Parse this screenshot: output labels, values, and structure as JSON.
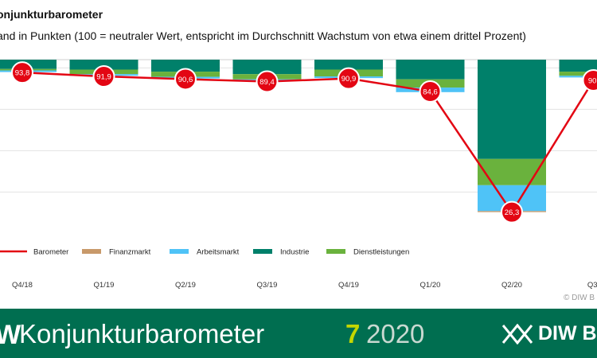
{
  "title": "onjunkturbarometer",
  "subtitle": "and in Punkten (100 = neutraler Wert, entspricht im Durchschnitt Wachstum von etwa einem drittel Prozent)",
  "credit": "© DIW B",
  "footer": {
    "logo_fragment": "W",
    "title": "Konjunkturbarometer",
    "issue_number": "7",
    "issue_year": "2020",
    "brand": "DIW BE"
  },
  "colors": {
    "barometer": "#e30613",
    "finanzmarkt": "#c8996a",
    "arbeitsmarkt": "#4fc3f7",
    "industrie": "#00806a",
    "dienstleistungen": "#6ab23d",
    "footer_bg": "#006e50",
    "issue_accent": "#c4d600"
  },
  "chart_data": {
    "type": "bar",
    "categories": [
      "Q4/18",
      "Q1/19",
      "Q2/19",
      "Q3/19",
      "Q4/19",
      "Q1/20",
      "Q2/20",
      "Q3/"
    ],
    "baseline": 100,
    "ylim": [
      20,
      102
    ],
    "grid": true,
    "legend_position": "bottom",
    "series": [
      {
        "name": "Barometer",
        "type": "line",
        "color": "#e30613",
        "values": [
          93.8,
          91.9,
          90.6,
          89.4,
          90.9,
          84.6,
          26.3,
          90
        ],
        "labels": [
          "93,8",
          "91,9",
          "90,6",
          "89,4",
          "90,9",
          "84,6",
          "26,3",
          "90,"
        ]
      },
      {
        "name": "Finanzmarkt",
        "type": "stacked-bar",
        "color": "#c8996a",
        "values": [
          0,
          0,
          0,
          0,
          0,
          0,
          -0.5,
          0
        ]
      },
      {
        "name": "Arbeitsmarkt",
        "type": "stacked-bar",
        "color": "#4fc3f7",
        "values": [
          -0.8,
          -0.8,
          -0.8,
          -0.8,
          -0.8,
          -2.2,
          -12.5,
          -0.8
        ]
      },
      {
        "name": "Industrie",
        "type": "stacked-bar",
        "color": "#00806a",
        "values": [
          -4.5,
          -4.8,
          -5.8,
          -7.0,
          -4.8,
          -9.5,
          -48.0,
          -5.8
        ]
      },
      {
        "name": "Dienstleistungen",
        "type": "stacked-bar",
        "color": "#6ab23d",
        "values": [
          -0.7,
          -2.2,
          -2.5,
          -2.5,
          -3.3,
          -4.0,
          -12.7,
          -2.0
        ]
      }
    ]
  }
}
